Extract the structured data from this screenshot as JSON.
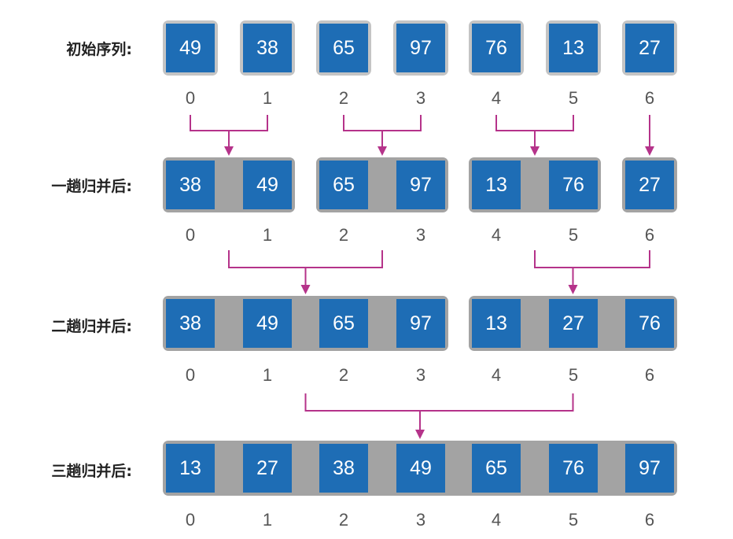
{
  "rows": [
    {
      "label": "初始序列:",
      "style": "light",
      "groups": [
        [
          49
        ],
        [
          38
        ],
        [
          65
        ],
        [
          97
        ],
        [
          76
        ],
        [
          13
        ],
        [
          27
        ]
      ]
    },
    {
      "label": "一趟归并后:",
      "style": "dark",
      "groups": [
        [
          38,
          49
        ],
        [
          65,
          97
        ],
        [
          13,
          76
        ],
        [
          27
        ]
      ]
    },
    {
      "label": "二趟归并后:",
      "style": "dark",
      "groups": [
        [
          38,
          49,
          65,
          97
        ],
        [
          13,
          27,
          76
        ]
      ]
    },
    {
      "label": "三趟归并后:",
      "style": "dark",
      "groups": [
        [
          13,
          27,
          38,
          49,
          65,
          76,
          97
        ]
      ]
    }
  ],
  "indices": [
    "0",
    "1",
    "2",
    "3",
    "4",
    "5",
    "6"
  ],
  "colors": {
    "cell": "#1e6db5",
    "arrow": "#b5338a",
    "group_light": "#c4c4c4",
    "group_dark": "#a3a3a3"
  }
}
